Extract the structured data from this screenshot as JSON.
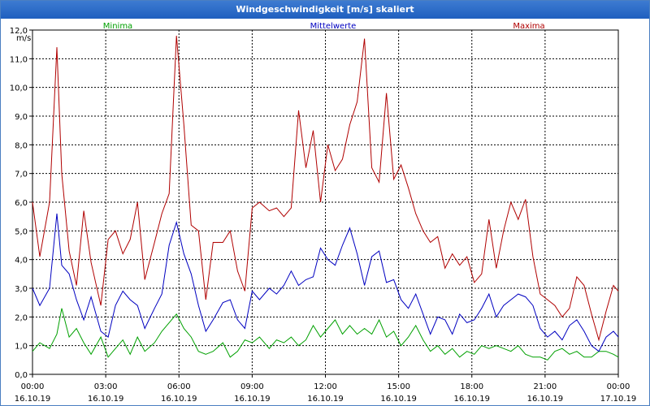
{
  "window": {
    "title": "Windgeschwindigkeit [m/s] skaliert"
  },
  "chart_data": {
    "type": "line",
    "title": "Windgeschwindigkeit [m/s] skaliert",
    "ylabel": "m/s",
    "ylim": [
      0,
      12
    ],
    "xlim": [
      0,
      24
    ],
    "grid": true,
    "y_ticks": [
      "0,0",
      "1,0",
      "2,0",
      "3,0",
      "4,0",
      "5,0",
      "6,0",
      "7,0",
      "8,0",
      "9,0",
      "10,0",
      "11,0",
      "12,0"
    ],
    "x_ticks": [
      {
        "time": "00:00",
        "date": "16.10.19"
      },
      {
        "time": "03:00",
        "date": "16.10.19"
      },
      {
        "time": "06:00",
        "date": "16.10.19"
      },
      {
        "time": "09:00",
        "date": "16.10.19"
      },
      {
        "time": "12:00",
        "date": "16.10.19"
      },
      {
        "time": "15:00",
        "date": "16.10.19"
      },
      {
        "time": "18:00",
        "date": "16.10.19"
      },
      {
        "time": "21:00",
        "date": "16.10.19"
      },
      {
        "time": "00:00",
        "date": "17.10.19"
      }
    ],
    "series": [
      {
        "name": "Minima",
        "color": "#00a000",
        "x": [
          0,
          0.3,
          0.7,
          1.0,
          1.2,
          1.5,
          1.8,
          2.1,
          2.4,
          2.8,
          3.1,
          3.4,
          3.7,
          4.0,
          4.3,
          4.6,
          5.0,
          5.3,
          5.6,
          5.9,
          6.2,
          6.5,
          6.8,
          7.1,
          7.4,
          7.8,
          8.1,
          8.4,
          8.7,
          9.0,
          9.3,
          9.7,
          10.0,
          10.3,
          10.6,
          10.9,
          11.2,
          11.5,
          11.8,
          12.1,
          12.4,
          12.7,
          13.0,
          13.3,
          13.6,
          13.9,
          14.2,
          14.5,
          14.8,
          15.1,
          15.4,
          15.7,
          16.0,
          16.3,
          16.6,
          16.9,
          17.2,
          17.5,
          17.8,
          18.1,
          18.4,
          18.7,
          19.0,
          19.3,
          19.6,
          19.9,
          20.2,
          20.5,
          20.8,
          21.1,
          21.4,
          21.7,
          22.0,
          22.3,
          22.6,
          22.9,
          23.2,
          23.5,
          23.8,
          24.0
        ],
        "values": [
          0.8,
          1.1,
          0.9,
          1.4,
          2.3,
          1.3,
          1.6,
          1.1,
          0.7,
          1.3,
          0.6,
          0.9,
          1.2,
          0.7,
          1.3,
          0.8,
          1.1,
          1.5,
          1.8,
          2.1,
          1.6,
          1.3,
          0.8,
          0.7,
          0.8,
          1.1,
          0.6,
          0.8,
          1.2,
          1.1,
          1.3,
          0.9,
          1.2,
          1.1,
          1.3,
          1.0,
          1.2,
          1.7,
          1.3,
          1.6,
          1.9,
          1.4,
          1.7,
          1.4,
          1.6,
          1.4,
          1.9,
          1.3,
          1.5,
          1.0,
          1.3,
          1.7,
          1.2,
          0.8,
          1.0,
          0.7,
          0.9,
          0.6,
          0.8,
          0.7,
          1.0,
          0.9,
          1.0,
          0.9,
          0.8,
          1.0,
          0.7,
          0.6,
          0.6,
          0.5,
          0.8,
          0.9,
          0.7,
          0.8,
          0.6,
          0.6,
          0.8,
          0.8,
          0.7,
          0.6
        ]
      },
      {
        "name": "Mittelwerte",
        "color": "#0000c0",
        "x": [
          0,
          0.3,
          0.7,
          1.0,
          1.2,
          1.5,
          1.8,
          2.1,
          2.4,
          2.8,
          3.1,
          3.4,
          3.7,
          4.0,
          4.3,
          4.6,
          5.0,
          5.3,
          5.6,
          5.9,
          6.2,
          6.5,
          6.8,
          7.1,
          7.4,
          7.8,
          8.1,
          8.4,
          8.7,
          9.0,
          9.3,
          9.7,
          10.0,
          10.3,
          10.6,
          10.9,
          11.2,
          11.5,
          11.8,
          12.1,
          12.4,
          12.7,
          13.0,
          13.3,
          13.6,
          13.9,
          14.2,
          14.5,
          14.8,
          15.1,
          15.4,
          15.7,
          16.0,
          16.3,
          16.6,
          16.9,
          17.2,
          17.5,
          17.8,
          18.1,
          18.4,
          18.7,
          19.0,
          19.3,
          19.6,
          19.9,
          20.2,
          20.5,
          20.8,
          21.1,
          21.4,
          21.7,
          22.0,
          22.3,
          22.6,
          22.9,
          23.2,
          23.5,
          23.8,
          24.0
        ],
        "values": [
          3.0,
          2.4,
          3.0,
          5.6,
          3.8,
          3.5,
          2.6,
          1.9,
          2.7,
          1.5,
          1.3,
          2.4,
          2.9,
          2.6,
          2.4,
          1.6,
          2.3,
          2.8,
          4.5,
          5.3,
          4.2,
          3.5,
          2.4,
          1.5,
          1.9,
          2.5,
          2.6,
          1.9,
          1.6,
          2.9,
          2.6,
          3.0,
          2.8,
          3.1,
          3.6,
          3.1,
          3.3,
          3.4,
          4.4,
          4.0,
          3.8,
          4.5,
          5.1,
          4.2,
          3.1,
          4.1,
          4.3,
          3.2,
          3.3,
          2.6,
          2.3,
          2.8,
          2.1,
          1.4,
          2.0,
          1.9,
          1.4,
          2.1,
          1.8,
          1.9,
          2.3,
          2.8,
          2.0,
          2.4,
          2.6,
          2.8,
          2.7,
          2.4,
          1.6,
          1.3,
          1.5,
          1.2,
          1.7,
          1.9,
          1.5,
          1.0,
          0.8,
          1.3,
          1.5,
          1.3
        ]
      },
      {
        "name": "Maxima",
        "color": "#b00000",
        "x": [
          0,
          0.3,
          0.7,
          1.0,
          1.2,
          1.5,
          1.8,
          2.1,
          2.4,
          2.8,
          3.1,
          3.4,
          3.7,
          4.0,
          4.3,
          4.6,
          5.0,
          5.3,
          5.6,
          5.9,
          6.2,
          6.5,
          6.8,
          7.1,
          7.4,
          7.8,
          8.1,
          8.4,
          8.7,
          9.0,
          9.3,
          9.7,
          10.0,
          10.3,
          10.6,
          10.9,
          11.2,
          11.5,
          11.8,
          12.1,
          12.4,
          12.7,
          13.0,
          13.3,
          13.6,
          13.9,
          14.2,
          14.5,
          14.8,
          15.1,
          15.4,
          15.7,
          16.0,
          16.3,
          16.6,
          16.9,
          17.2,
          17.5,
          17.8,
          18.1,
          18.4,
          18.7,
          19.0,
          19.3,
          19.6,
          19.9,
          20.2,
          20.5,
          20.8,
          21.1,
          21.4,
          21.7,
          22.0,
          22.3,
          22.6,
          22.9,
          23.2,
          23.5,
          23.8,
          24.0
        ],
        "values": [
          6.0,
          4.1,
          6.0,
          11.4,
          7.0,
          4.3,
          3.1,
          5.7,
          3.9,
          2.4,
          4.7,
          5.0,
          4.2,
          4.7,
          6.0,
          3.3,
          4.6,
          5.6,
          6.3,
          11.8,
          8.7,
          5.2,
          5.0,
          2.6,
          4.6,
          4.6,
          5.0,
          3.6,
          2.9,
          5.8,
          6.0,
          5.7,
          5.8,
          5.5,
          5.8,
          9.2,
          7.2,
          8.5,
          6.0,
          8.0,
          7.1,
          7.5,
          8.7,
          9.5,
          11.7,
          7.2,
          6.7,
          9.8,
          6.8,
          7.3,
          6.5,
          5.6,
          5.0,
          4.6,
          4.8,
          3.7,
          4.2,
          3.8,
          4.1,
          3.2,
          3.5,
          5.4,
          3.7,
          5.0,
          6.0,
          5.4,
          6.1,
          4.1,
          2.8,
          2.6,
          2.4,
          2.0,
          2.3,
          3.4,
          3.1,
          2.1,
          1.2,
          2.2,
          3.1,
          2.9
        ]
      }
    ]
  }
}
